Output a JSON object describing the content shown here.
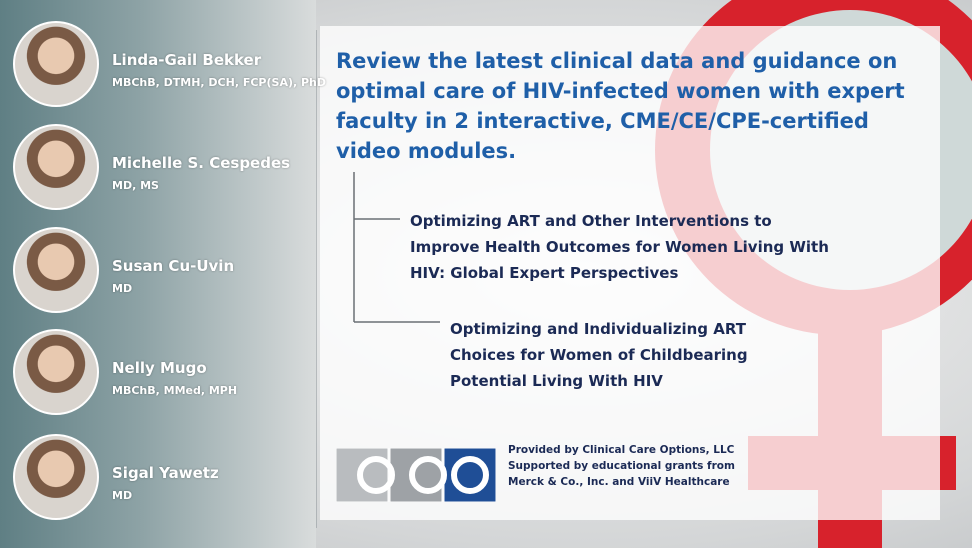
{
  "faculty": [
    {
      "name": "Linda-Gail Bekker",
      "credentials": "MBChB, DTMH, DCH, FCP(SA), PhD"
    },
    {
      "name": "Michelle S. Cespedes",
      "credentials": "MD, MS"
    },
    {
      "name": "Susan Cu-Uvin",
      "credentials": "MD"
    },
    {
      "name": "Nelly Mugo",
      "credentials": "MBChB, MMed, MPH"
    },
    {
      "name": "Sigal Yawetz",
      "credentials": "MD"
    }
  ],
  "headline": "Review the latest clinical data and guidance on optimal care of HIV-infected women with expert faculty in 2 interactive, CME/CE/CPE-certified video modules.",
  "modules": [
    "Optimizing ART and Other Interventions to Improve Health Outcomes for Women Living With HIV: Global Expert Perspectives",
    "Optimizing and Individualizing ART Choices for Women of Childbearing Potential Living With HIV"
  ],
  "sponsor": [
    "Provided by Clinical Care Options, LLC",
    "Supported by educational grants from",
    "Merck & Co., Inc. and ViiV Healthcare"
  ]
}
